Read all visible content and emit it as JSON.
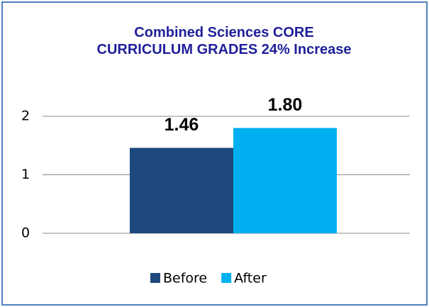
{
  "chart_data": {
    "type": "bar",
    "title": "Combined Sciences CORE CURRICULUM GRADES  24% Increase",
    "categories": [
      null
    ],
    "series": [
      {
        "name": "Before",
        "color": "#1f497d",
        "values": [
          1.46
        ],
        "value_labels": [
          "1.46"
        ]
      },
      {
        "name": "After",
        "color": "#00b0f0",
        "values": [
          1.8
        ],
        "value_labels": [
          "1.80"
        ]
      }
    ],
    "ylim": [
      0,
      2
    ],
    "yticks": [
      0,
      1,
      2
    ],
    "grid": true,
    "legend": "bottom"
  }
}
